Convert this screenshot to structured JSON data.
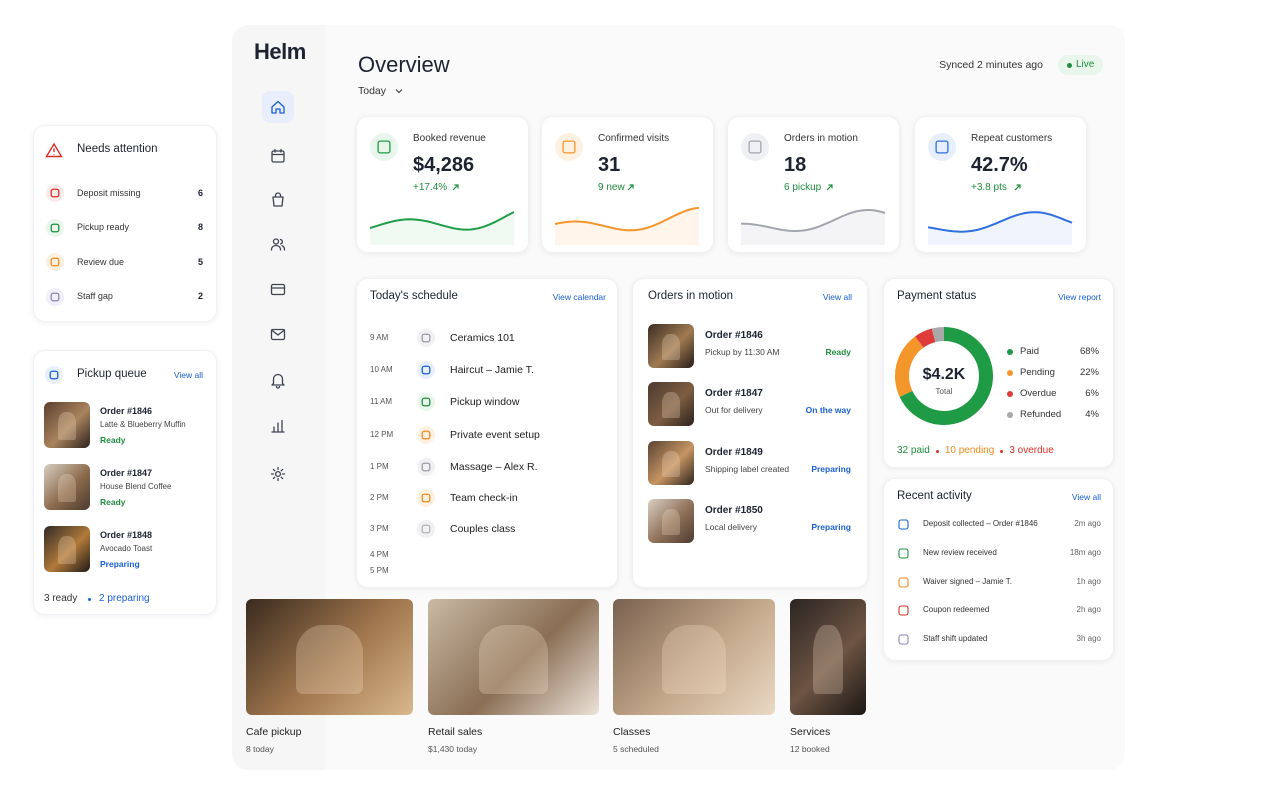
{
  "brand": "Helm",
  "header": {
    "title": "Overview",
    "range": "Today",
    "sync": "Synced 2 minutes ago",
    "status": "Live"
  },
  "kpis": [
    {
      "label": "Booked revenue",
      "value": "$4,286",
      "change": "+17.4%"
    },
    {
      "label": "Confirmed visits",
      "value": "31",
      "change": "9 new"
    },
    {
      "label": "Orders in motion",
      "value": "18",
      "change": "6 pickup"
    },
    {
      "label": "Repeat customers",
      "value": "42.7%",
      "change": "+3.8 pts"
    }
  ],
  "attention": {
    "title": "Needs attention",
    "items": [
      {
        "label": "Deposit missing",
        "count": 6
      },
      {
        "label": "Pickup ready",
        "count": 8
      },
      {
        "label": "Review due",
        "count": 5
      },
      {
        "label": "Staff gap",
        "count": 2
      }
    ]
  },
  "pickup": {
    "title": "Pickup queue",
    "action": "View all",
    "orders": [
      {
        "order": "Order #1846",
        "item": "Latte & Blueberry Muffin",
        "status": "Ready"
      },
      {
        "order": "Order #1847",
        "item": "House Blend Coffee",
        "status": "Ready"
      },
      {
        "order": "Order #1848",
        "item": "Avocado Toast",
        "status": "Preparing"
      }
    ],
    "summary_ready": "3 ready",
    "summary_preparing": "2 preparing"
  },
  "schedule": {
    "title": "Today's schedule",
    "action": "View calendar",
    "rows": [
      {
        "time": "9 AM",
        "event": "Ceramics 101"
      },
      {
        "time": "10 AM",
        "event": "Haircut – Jamie T."
      },
      {
        "time": "11 AM",
        "event": "Pickup window"
      },
      {
        "time": "12 PM",
        "event": "Private event setup"
      },
      {
        "time": "1 PM",
        "event": "Massage – Alex R."
      },
      {
        "time": "2 PM",
        "event": "Team check-in"
      },
      {
        "time": "3 PM",
        "event": "Couples class"
      }
    ],
    "extra_times": [
      "4 PM",
      "5 PM"
    ]
  },
  "orders": {
    "title": "Orders in motion",
    "action": "View all",
    "rows": [
      {
        "order": "Order #1846",
        "detail": "Pickup by 11:30 AM",
        "status": "Ready"
      },
      {
        "order": "Order #1847",
        "detail": "Out for delivery",
        "status": "On the way"
      },
      {
        "order": "Order #1849",
        "detail": "Shipping label created",
        "status": "Preparing"
      },
      {
        "order": "Order #1850",
        "detail": "Local delivery",
        "status": "Preparing"
      }
    ]
  },
  "payment": {
    "title": "Payment status",
    "action": "View report",
    "center_value": "$4.2K",
    "center_label": "Total",
    "items": [
      {
        "name": "Paid",
        "value": 68,
        "value_label": "68%",
        "color": "#1f9a45"
      },
      {
        "name": "Pending",
        "value": 22,
        "value_label": "22%",
        "color": "#f5962b"
      },
      {
        "name": "Overdue",
        "value": 6,
        "value_label": "6%",
        "color": "#e03b3b"
      },
      {
        "name": "Refunded",
        "value": 4,
        "value_label": "4%",
        "color": "#a8a8a8"
      }
    ],
    "summary": [
      "32 paid",
      "10 pending",
      "3 overdue"
    ]
  },
  "activity": {
    "title": "Recent activity",
    "action": "View all",
    "items": [
      {
        "text": "Deposit collected – Order #1846",
        "time": "2m ago"
      },
      {
        "text": "New review received",
        "time": "18m ago"
      },
      {
        "text": "Waiver signed – Jamie T.",
        "time": "1h ago"
      },
      {
        "text": "Coupon redeemed",
        "time": "2h ago"
      },
      {
        "text": "Staff shift updated",
        "time": "3h ago"
      }
    ]
  },
  "tiles": [
    {
      "name": "Cafe pickup",
      "detail": "8 today"
    },
    {
      "name": "Retail sales",
      "detail": "$1,430 today"
    },
    {
      "name": "Classes",
      "detail": "5 scheduled"
    },
    {
      "name": "Services",
      "detail": "12 booked"
    }
  ]
}
